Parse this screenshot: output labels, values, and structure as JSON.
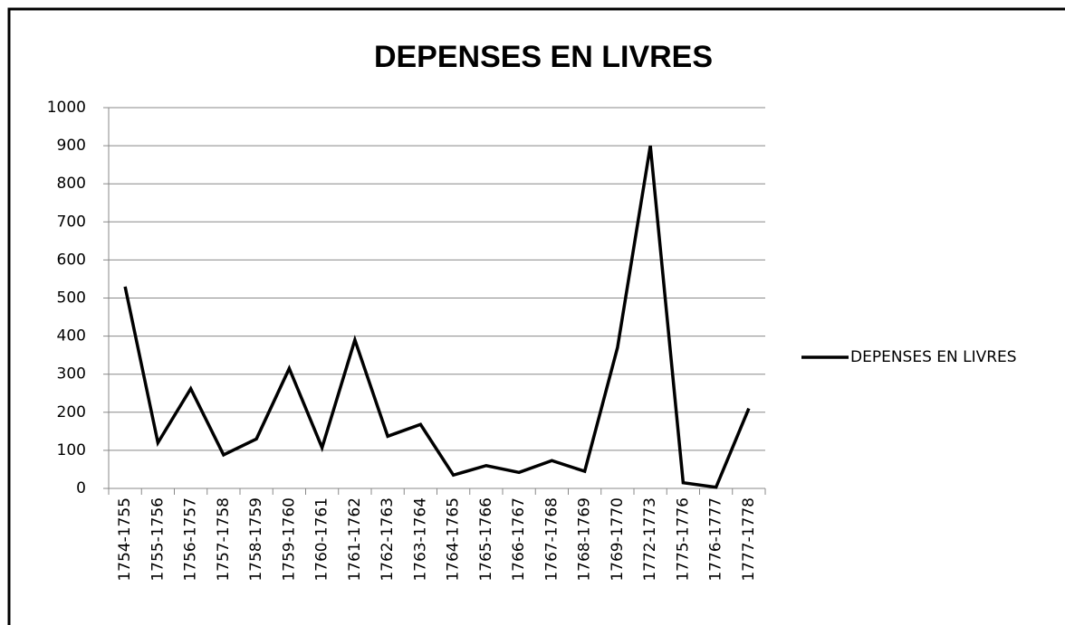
{
  "chart_data": {
    "type": "line",
    "title": "DEPENSES EN LIVRES",
    "categories": [
      "1754-1755",
      "1755-1756",
      "1756-1757",
      "1757-1758",
      "1758-1759",
      "1759-1760",
      "1760-1761",
      "1761-1762",
      "1762-1763",
      "1763-1764",
      "1764-1765",
      "1765-1766",
      "1766-1767",
      "1767-1768",
      "1768-1769",
      "1769-1770",
      "1772-1773",
      "1775-1776",
      "1776-1777",
      "1777-1778"
    ],
    "series": [
      {
        "name": "DEPENSES EN LIVRES",
        "color": "#000000",
        "values": [
          530,
          120,
          262,
          88,
          130,
          315,
          107,
          390,
          137,
          168,
          35,
          60,
          42,
          73,
          45,
          370,
          900,
          15,
          3,
          210
        ]
      }
    ],
    "ylim": [
      0,
      1000
    ],
    "yticks": [
      0,
      100,
      200,
      300,
      400,
      500,
      600,
      700,
      800,
      900,
      1000
    ],
    "grid": true,
    "legend": "right"
  }
}
